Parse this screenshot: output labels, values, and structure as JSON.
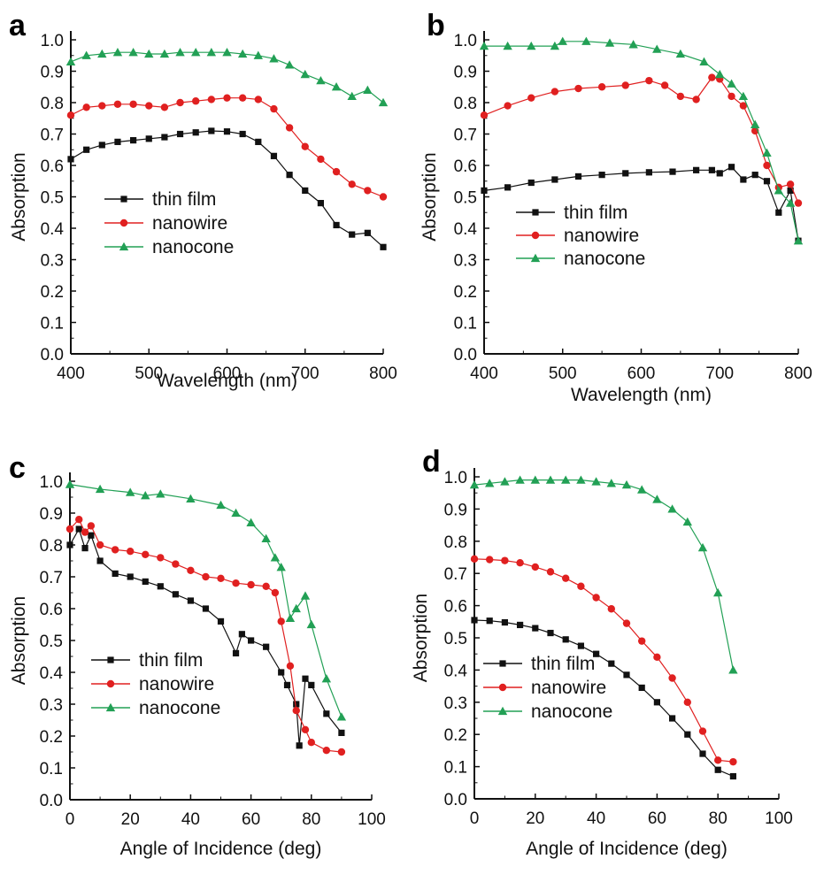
{
  "chart_data": [
    {
      "panel": "a",
      "type": "line",
      "xlabel": "Wavelength (nm)",
      "ylabel": "Absorption",
      "xlim": [
        400,
        800
      ],
      "ylim": [
        0,
        1.0
      ],
      "xticks": [
        "400",
        "500",
        "600",
        "700",
        "800"
      ],
      "yticks": [
        "0.0",
        "0.1",
        "0.2",
        "0.3",
        "0.4",
        "0.5",
        "0.6",
        "0.7",
        "0.8",
        "0.9",
        "1.0"
      ],
      "legend": "center-left",
      "series": [
        {
          "name": "thin film",
          "color": "#111111",
          "marker": "square",
          "x": [
            400,
            420,
            440,
            460,
            480,
            500,
            520,
            540,
            560,
            580,
            600,
            620,
            640,
            660,
            680,
            700,
            720,
            740,
            760,
            780,
            800
          ],
          "y": [
            0.62,
            0.65,
            0.665,
            0.675,
            0.68,
            0.685,
            0.69,
            0.7,
            0.705,
            0.71,
            0.708,
            0.7,
            0.675,
            0.63,
            0.57,
            0.52,
            0.48,
            0.41,
            0.38,
            0.385,
            0.34
          ]
        },
        {
          "name": "nanowire",
          "color": "#e02020",
          "marker": "circle",
          "x": [
            400,
            420,
            440,
            460,
            480,
            500,
            520,
            540,
            560,
            580,
            600,
            620,
            640,
            660,
            680,
            700,
            720,
            740,
            760,
            780,
            800
          ],
          "y": [
            0.76,
            0.785,
            0.79,
            0.795,
            0.795,
            0.79,
            0.785,
            0.8,
            0.805,
            0.81,
            0.815,
            0.815,
            0.81,
            0.78,
            0.72,
            0.66,
            0.62,
            0.58,
            0.54,
            0.52,
            0.5
          ]
        },
        {
          "name": "nanocone",
          "color": "#22a055",
          "marker": "triangle",
          "x": [
            400,
            420,
            440,
            460,
            480,
            500,
            520,
            540,
            560,
            580,
            600,
            620,
            640,
            660,
            680,
            700,
            720,
            740,
            760,
            780,
            800
          ],
          "y": [
            0.93,
            0.95,
            0.955,
            0.96,
            0.96,
            0.955,
            0.955,
            0.96,
            0.96,
            0.96,
            0.96,
            0.955,
            0.95,
            0.94,
            0.92,
            0.89,
            0.87,
            0.85,
            0.82,
            0.84,
            0.8
          ]
        }
      ]
    },
    {
      "panel": "b",
      "type": "line",
      "xlabel": "Wavelength (nm)",
      "ylabel": "Absorption",
      "xlim": [
        400,
        800
      ],
      "ylim": [
        0,
        1.0
      ],
      "xticks": [
        "400",
        "500",
        "600",
        "700",
        "800"
      ],
      "yticks": [
        "0.0",
        "0.1",
        "0.2",
        "0.3",
        "0.4",
        "0.5",
        "0.6",
        "0.7",
        "0.8",
        "0.9",
        "1.0"
      ],
      "legend": "center-left",
      "series": [
        {
          "name": "thin film",
          "color": "#111111",
          "marker": "square",
          "x": [
            400,
            430,
            460,
            490,
            520,
            550,
            580,
            610,
            640,
            670,
            690,
            700,
            715,
            730,
            745,
            760,
            775,
            790,
            800
          ],
          "y": [
            0.52,
            0.53,
            0.545,
            0.555,
            0.565,
            0.57,
            0.575,
            0.578,
            0.58,
            0.585,
            0.585,
            0.575,
            0.595,
            0.555,
            0.57,
            0.55,
            0.45,
            0.52,
            0.36
          ]
        },
        {
          "name": "nanowire",
          "color": "#e02020",
          "marker": "circle",
          "x": [
            400,
            430,
            460,
            490,
            520,
            550,
            580,
            610,
            630,
            650,
            670,
            690,
            700,
            715,
            730,
            745,
            760,
            775,
            790,
            800
          ],
          "y": [
            0.76,
            0.79,
            0.815,
            0.835,
            0.845,
            0.85,
            0.855,
            0.87,
            0.855,
            0.82,
            0.81,
            0.88,
            0.875,
            0.82,
            0.79,
            0.71,
            0.6,
            0.53,
            0.54,
            0.48
          ]
        },
        {
          "name": "nanocone",
          "color": "#22a055",
          "marker": "triangle",
          "x": [
            400,
            430,
            460,
            490,
            500,
            530,
            560,
            590,
            620,
            650,
            680,
            700,
            715,
            730,
            745,
            760,
            775,
            790,
            800
          ],
          "y": [
            0.98,
            0.98,
            0.98,
            0.98,
            0.995,
            0.995,
            0.99,
            0.985,
            0.97,
            0.955,
            0.93,
            0.89,
            0.86,
            0.82,
            0.73,
            0.64,
            0.52,
            0.48,
            0.36
          ]
        }
      ]
    },
    {
      "panel": "c",
      "type": "line",
      "xlabel": "Angle of Incidence (deg)",
      "ylabel": "Absorption",
      "xlim": [
        0,
        100
      ],
      "ylim": [
        0,
        1.0
      ],
      "xticks": [
        "0",
        "20",
        "40",
        "60",
        "80",
        "100"
      ],
      "yticks": [
        "0.0",
        "0.1",
        "0.2",
        "0.3",
        "0.4",
        "0.5",
        "0.6",
        "0.7",
        "0.8",
        "0.9",
        "1.0"
      ],
      "legend": "bottom-left",
      "series": [
        {
          "name": "thin film",
          "color": "#111111",
          "marker": "square",
          "x": [
            0,
            3,
            5,
            7,
            10,
            15,
            20,
            25,
            30,
            35,
            40,
            45,
            50,
            55,
            57,
            60,
            65,
            70,
            72,
            75,
            76,
            78,
            80,
            85,
            90
          ],
          "y": [
            0.8,
            0.85,
            0.79,
            0.83,
            0.75,
            0.71,
            0.7,
            0.685,
            0.67,
            0.645,
            0.625,
            0.6,
            0.56,
            0.46,
            0.52,
            0.5,
            0.48,
            0.4,
            0.36,
            0.3,
            0.17,
            0.38,
            0.36,
            0.27,
            0.21
          ]
        },
        {
          "name": "nanowire",
          "color": "#e02020",
          "marker": "circle",
          "x": [
            0,
            3,
            5,
            7,
            10,
            15,
            20,
            25,
            30,
            35,
            40,
            45,
            50,
            55,
            60,
            65,
            68,
            70,
            73,
            75,
            78,
            80,
            85,
            90
          ],
          "y": [
            0.85,
            0.88,
            0.84,
            0.86,
            0.8,
            0.785,
            0.78,
            0.77,
            0.76,
            0.74,
            0.72,
            0.7,
            0.695,
            0.68,
            0.675,
            0.67,
            0.65,
            0.56,
            0.42,
            0.28,
            0.22,
            0.18,
            0.155,
            0.15
          ]
        },
        {
          "name": "nanocone",
          "color": "#22a055",
          "marker": "triangle",
          "x": [
            0,
            10,
            20,
            25,
            30,
            40,
            50,
            55,
            60,
            65,
            68,
            70,
            73,
            75,
            78,
            80,
            85,
            90
          ],
          "y": [
            0.99,
            0.975,
            0.965,
            0.955,
            0.96,
            0.945,
            0.925,
            0.9,
            0.87,
            0.82,
            0.76,
            0.73,
            0.57,
            0.6,
            0.64,
            0.55,
            0.38,
            0.26
          ]
        }
      ]
    },
    {
      "panel": "d",
      "type": "line",
      "xlabel": "Angle of Incidence (deg)",
      "ylabel": "Absorption",
      "xlim": [
        0,
        100
      ],
      "ylim": [
        0,
        1.0
      ],
      "xticks": [
        "0",
        "20",
        "40",
        "60",
        "80",
        "100"
      ],
      "yticks": [
        "0.0",
        "0.1",
        "0.2",
        "0.3",
        "0.4",
        "0.5",
        "0.6",
        "0.7",
        "0.8",
        "0.9",
        "1.0"
      ],
      "legend": "bottom-left",
      "series": [
        {
          "name": "thin film",
          "color": "#111111",
          "marker": "square",
          "x": [
            0,
            5,
            10,
            15,
            20,
            25,
            30,
            35,
            40,
            45,
            50,
            55,
            60,
            65,
            70,
            75,
            80,
            85
          ],
          "y": [
            0.555,
            0.553,
            0.548,
            0.54,
            0.53,
            0.515,
            0.495,
            0.475,
            0.45,
            0.42,
            0.385,
            0.345,
            0.3,
            0.25,
            0.2,
            0.14,
            0.09,
            0.07
          ]
        },
        {
          "name": "nanowire",
          "color": "#e02020",
          "marker": "circle",
          "x": [
            0,
            5,
            10,
            15,
            20,
            25,
            30,
            35,
            40,
            45,
            50,
            55,
            60,
            65,
            70,
            75,
            80,
            85
          ],
          "y": [
            0.745,
            0.743,
            0.74,
            0.733,
            0.72,
            0.705,
            0.685,
            0.66,
            0.625,
            0.59,
            0.545,
            0.49,
            0.44,
            0.375,
            0.3,
            0.21,
            0.12,
            0.115
          ]
        },
        {
          "name": "nanocone",
          "color": "#22a055",
          "marker": "triangle",
          "x": [
            0,
            5,
            10,
            15,
            20,
            25,
            30,
            35,
            40,
            45,
            50,
            55,
            60,
            65,
            70,
            75,
            80,
            85
          ],
          "y": [
            0.975,
            0.98,
            0.985,
            0.99,
            0.99,
            0.99,
            0.99,
            0.99,
            0.985,
            0.98,
            0.975,
            0.96,
            0.93,
            0.9,
            0.86,
            0.78,
            0.64,
            0.4
          ]
        }
      ]
    }
  ]
}
